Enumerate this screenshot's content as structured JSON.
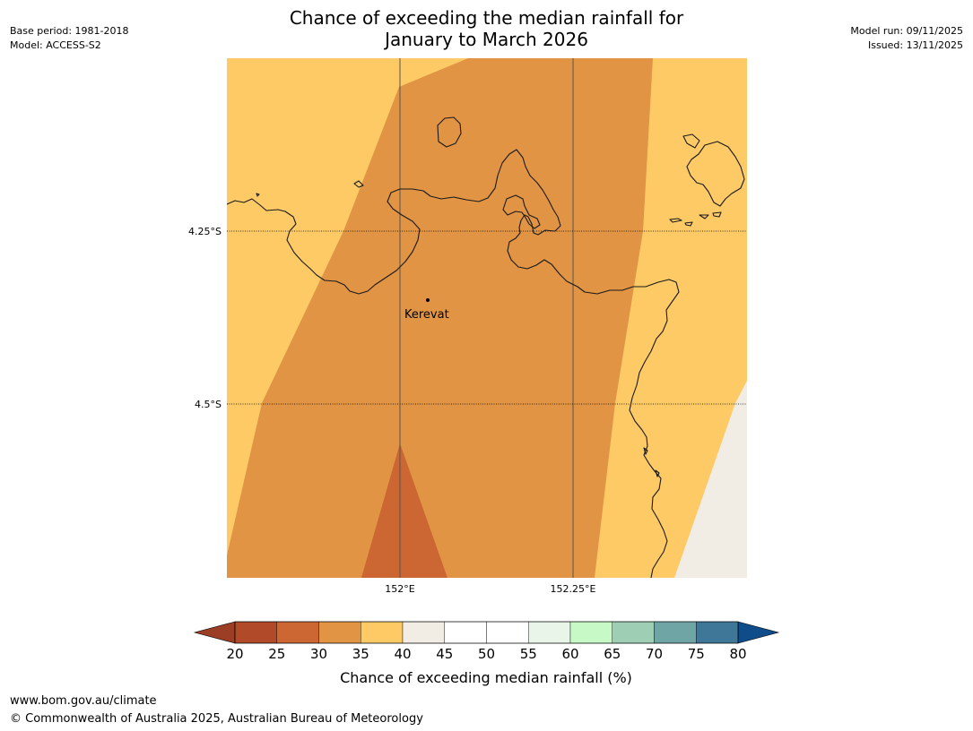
{
  "title": {
    "line1": "Chance of exceeding the median rainfall for",
    "line2": "January to March 2026"
  },
  "meta_left": {
    "base_period": "Base period: 1981-2018",
    "model": "Model: ACCESS-S2"
  },
  "meta_right": {
    "model_run": "Model run: 09/11/2025",
    "issued": "Issued: 13/11/2025"
  },
  "map": {
    "lat_labels": [
      "4.25°S",
      "4.5°S"
    ],
    "lon_labels": [
      "152°E",
      "152.25°E"
    ],
    "place": "Kerevat"
  },
  "legend": {
    "label": "Chance of exceeding median rainfall (%)",
    "ticks": [
      "20",
      "25",
      "30",
      "35",
      "40",
      "45",
      "50",
      "55",
      "60",
      "65",
      "70",
      "75",
      "80"
    ],
    "below_color": "#9c3d26",
    "above_color": "#0f4c8a",
    "colors": [
      "#b04a28",
      "#cc6633",
      "#e09444",
      "#fdca66",
      "#f1ece4",
      "#ffffff",
      "#ffffff",
      "#e8f5e8",
      "#c7f9c7",
      "#9ecfb5",
      "#70a5a5",
      "#3f7798"
    ]
  },
  "footer": {
    "url": "www.bom.gov.au/climate",
    "copyright": "© Commonwealth of Australia 2025, Australian Bureau of Meteorology"
  }
}
